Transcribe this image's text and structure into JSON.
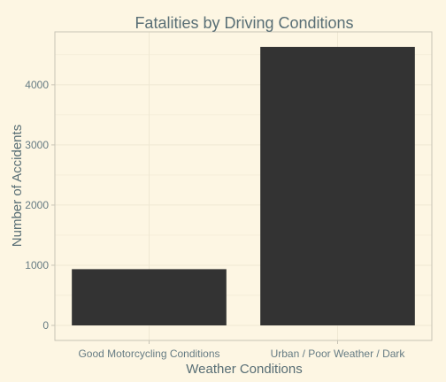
{
  "chart_data": {
    "type": "bar",
    "title": "Fatalities by Driving Conditions",
    "xlabel": "Weather Conditions",
    "ylabel": "Number of Accidents",
    "categories": [
      "Good Motorcycling Conditions",
      "Urban / Poor Weather / Dark"
    ],
    "values": [
      935,
      4630
    ],
    "ylim": [
      -250,
      4880
    ],
    "yticks": [
      0,
      1000,
      2000,
      3000,
      4000
    ],
    "ytick_labels": [
      "0",
      "1000",
      "2000",
      "3000",
      "4000"
    ],
    "grid": true,
    "legend": "none",
    "bar_color": "#333333",
    "background_color": "#fdf6e3",
    "grid_color": "#efe8d3",
    "panel_border_color": "#c8c4b6",
    "text_color": "#586e75"
  }
}
